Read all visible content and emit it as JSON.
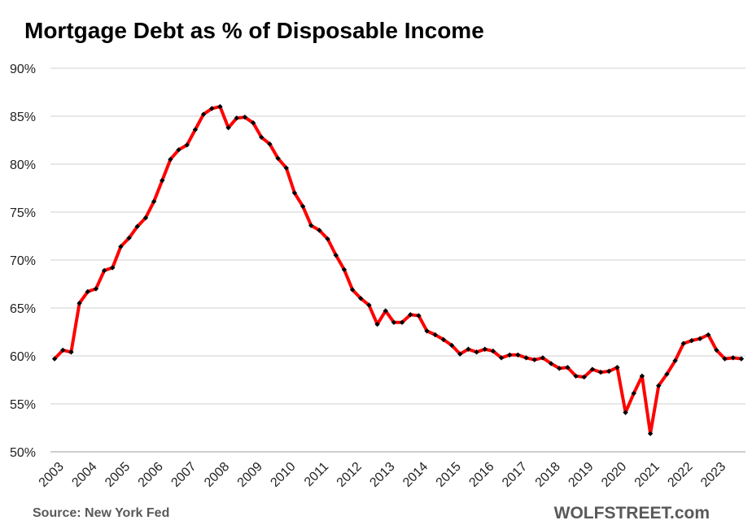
{
  "chart_data": {
    "type": "line",
    "title": "Mortgage Debt as % of Disposable Income",
    "xlabel": "",
    "ylabel": "",
    "ylim": [
      50,
      90
    ],
    "yticks": [
      "50%",
      "55%",
      "60%",
      "65%",
      "70%",
      "75%",
      "80%",
      "85%",
      "90%"
    ],
    "ytick_values": [
      50,
      55,
      60,
      65,
      70,
      75,
      80,
      85,
      90
    ],
    "xticks": [
      "2003",
      "2004",
      "2005",
      "2006",
      "2007",
      "2008",
      "2009",
      "2010",
      "2011",
      "2012",
      "2013",
      "2014",
      "2015",
      "2016",
      "2017",
      "2018",
      "2019",
      "2020",
      "2021",
      "2022",
      "2023"
    ],
    "grid": true,
    "line_color": "#ff0000",
    "marker_color": "#000000",
    "series": [
      {
        "values": [
          59.7,
          60.6,
          60.4,
          65.5,
          66.7,
          67.0,
          68.9,
          69.2,
          71.4,
          72.3,
          73.5,
          74.4,
          76.1,
          78.3,
          80.5,
          81.5,
          82.0,
          83.6,
          85.2,
          85.8,
          86.0,
          83.8,
          84.8,
          84.9,
          84.3,
          82.8,
          82.1,
          80.6,
          79.6,
          77.0,
          75.6,
          73.6,
          73.1,
          72.2,
          70.5,
          69.0,
          66.9,
          66.0,
          65.3,
          63.3,
          64.7,
          63.5,
          63.5,
          64.3,
          64.2,
          62.6,
          62.2,
          61.7,
          61.1,
          60.2,
          60.7,
          60.4,
          60.7,
          60.5,
          59.8,
          60.1,
          60.1,
          59.8,
          59.6,
          59.8,
          59.2,
          58.7,
          58.8,
          57.9,
          57.8,
          58.6,
          58.3,
          58.4,
          58.8,
          54.1,
          56.1,
          57.9,
          51.9,
          56.9,
          58.1,
          59.5,
          61.3,
          61.6,
          61.8,
          62.2,
          60.6,
          59.7,
          59.8,
          59.7
        ]
      }
    ]
  },
  "footer": {
    "source": "Source: New York Fed",
    "brand": "WOLFSTREET.com"
  }
}
